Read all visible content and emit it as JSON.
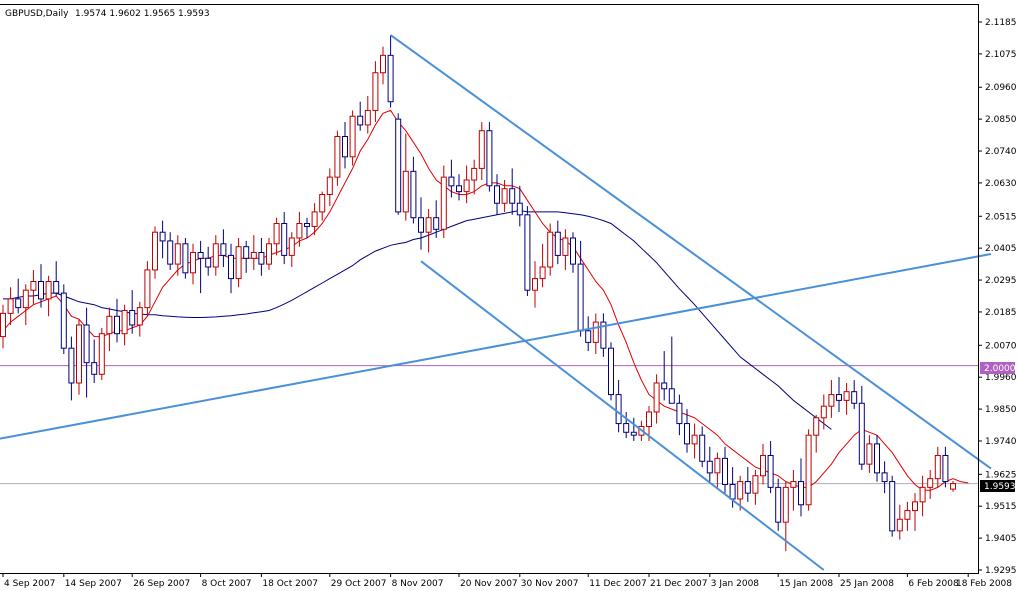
{
  "header": {
    "symbol": "GBPUSD,Daily",
    "ohlc": "1.9574 1.9602 1.9565 1.9593"
  },
  "price_axis": {
    "ticks": [
      "2.1185",
      "2.1075",
      "2.0960",
      "2.0850",
      "2.0740",
      "2.0630",
      "2.0515",
      "2.0405",
      "2.0295",
      "2.0185",
      "2.0070",
      "1.9960",
      "1.9850",
      "1.9740",
      "1.9625",
      "1.9515",
      "1.9405",
      "1.9295"
    ],
    "level_label": "2.0000",
    "current_label": "1.9593"
  },
  "time_axis": {
    "labels": [
      "4 Sep 2007",
      "14 Sep 2007",
      "26 Sep 2007",
      "8 Oct 2007",
      "18 Oct 2007",
      "29 Oct 2007",
      "8 Nov 2007",
      "20 Nov 2007",
      "30 Nov 2007",
      "11 Dec 2007",
      "21 Dec 2007",
      "3 Jan 2008",
      "15 Jan 2008",
      "25 Jan 2008",
      "6 Feb 2008",
      "18 Feb 2008"
    ]
  },
  "colors": {
    "bull": "#c00000",
    "bear": "#00007f",
    "fast_ma": "#e00000",
    "slow_ma": "#000080",
    "trendline": "#4a90d9",
    "level": "#b060c0",
    "current": "#b0b0b0",
    "axis": "#000000"
  },
  "chart_data": {
    "type": "candlestick",
    "symbol": "GBPUSD",
    "timeframe": "Daily",
    "ylim": [
      1.9295,
      2.1185
    ],
    "y_ticks": [
      2.1185,
      2.1075,
      2.096,
      2.085,
      2.074,
      2.063,
      2.0515,
      2.0405,
      2.0295,
      2.0185,
      2.007,
      1.996,
      1.985,
      1.974,
      1.9625,
      1.9515,
      1.9405,
      1.9295
    ],
    "x_labels": [
      "4 Sep 2007",
      "14 Sep 2007",
      "26 Sep 2007",
      "8 Oct 2007",
      "18 Oct 2007",
      "29 Oct 2007",
      "8 Nov 2007",
      "20 Nov 2007",
      "30 Nov 2007",
      "11 Dec 2007",
      "21 Dec 2007",
      "3 Jan 2008",
      "15 Jan 2008",
      "25 Jan 2008",
      "6 Feb 2008",
      "18 Feb 2008"
    ],
    "x_label_bar_index": [
      0,
      8,
      17,
      26,
      34,
      43,
      51,
      60,
      68,
      77,
      85,
      93,
      102,
      110,
      119,
      127
    ],
    "candles": [
      [
        2.01,
        2.021,
        2.006,
        2.018
      ],
      [
        2.018,
        2.027,
        2.014,
        2.023
      ],
      [
        2.023,
        2.03,
        2.018,
        2.02
      ],
      [
        2.02,
        2.028,
        2.014,
        2.026
      ],
      [
        2.026,
        2.033,
        2.021,
        2.029
      ],
      [
        2.029,
        2.035,
        2.02,
        2.023
      ],
      [
        2.023,
        2.031,
        2.017,
        2.029
      ],
      [
        2.029,
        2.036,
        2.024,
        2.025
      ],
      [
        2.025,
        2.028,
        2.004,
        2.006
      ],
      [
        2.006,
        2.01,
        1.988,
        1.994
      ],
      [
        1.994,
        2.016,
        1.99,
        2.014
      ],
      [
        2.014,
        2.02,
        1.989,
        2.001
      ],
      [
        2.001,
        2.009,
        1.994,
        1.997
      ],
      [
        1.997,
        2.013,
        1.995,
        2.011
      ],
      [
        2.011,
        2.02,
        2.005,
        2.017
      ],
      [
        2.017,
        2.023,
        2.008,
        2.011
      ],
      [
        2.011,
        2.021,
        2.007,
        2.019
      ],
      [
        2.019,
        2.026,
        2.011,
        2.014
      ],
      [
        2.014,
        2.022,
        2.01,
        2.02
      ],
      [
        2.02,
        2.036,
        2.017,
        2.033
      ],
      [
        2.033,
        2.048,
        2.03,
        2.046
      ],
      [
        2.046,
        2.05,
        2.037,
        2.043
      ],
      [
        2.043,
        2.046,
        2.033,
        2.035
      ],
      [
        2.035,
        2.045,
        2.031,
        2.042
      ],
      [
        2.042,
        2.044,
        2.03,
        2.032
      ],
      [
        2.032,
        2.042,
        2.028,
        2.039
      ],
      [
        2.039,
        2.043,
        2.025,
        2.037
      ],
      [
        2.037,
        2.041,
        2.031,
        2.034
      ],
      [
        2.034,
        2.045,
        2.031,
        2.042
      ],
      [
        2.042,
        2.047,
        2.034,
        2.038
      ],
      [
        2.038,
        2.042,
        2.025,
        2.03
      ],
      [
        2.03,
        2.044,
        2.027,
        2.041
      ],
      [
        2.041,
        2.043,
        2.032,
        2.037
      ],
      [
        2.037,
        2.045,
        2.033,
        2.039
      ],
      [
        2.039,
        2.044,
        2.031,
        2.035
      ],
      [
        2.035,
        2.044,
        2.033,
        2.042
      ],
      [
        2.042,
        2.051,
        2.038,
        2.049
      ],
      [
        2.049,
        2.053,
        2.035,
        2.038
      ],
      [
        2.038,
        2.046,
        2.034,
        2.044
      ],
      [
        2.044,
        2.053,
        2.041,
        2.049
      ],
      [
        2.049,
        2.051,
        2.044,
        2.048
      ],
      [
        2.048,
        2.056,
        2.045,
        2.053
      ],
      [
        2.053,
        2.06,
        2.05,
        2.059
      ],
      [
        2.059,
        2.068,
        2.055,
        2.065
      ],
      [
        2.065,
        2.081,
        2.062,
        2.079
      ],
      [
        2.079,
        2.084,
        2.068,
        2.072
      ],
      [
        2.072,
        2.088,
        2.069,
        2.086
      ],
      [
        2.086,
        2.091,
        2.081,
        2.083
      ],
      [
        2.083,
        2.093,
        2.08,
        2.088
      ],
      [
        2.088,
        2.105,
        2.084,
        2.101
      ],
      [
        2.101,
        2.11,
        2.097,
        2.107
      ],
      [
        2.107,
        2.114,
        2.089,
        2.091
      ],
      [
        2.085,
        2.087,
        2.052,
        2.053
      ],
      [
        2.053,
        2.08,
        2.05,
        2.067
      ],
      [
        2.067,
        2.072,
        2.049,
        2.051
      ],
      [
        2.051,
        2.058,
        2.04,
        2.046
      ],
      [
        2.046,
        2.054,
        2.039,
        2.051
      ],
      [
        2.051,
        2.057,
        2.044,
        2.047
      ],
      [
        2.047,
        2.069,
        2.044,
        2.065
      ],
      [
        2.065,
        2.071,
        2.058,
        2.062
      ],
      [
        2.062,
        2.066,
        2.057,
        2.06
      ],
      [
        2.06,
        2.069,
        2.056,
        2.064
      ],
      [
        2.064,
        2.071,
        2.059,
        2.068
      ],
      [
        2.068,
        2.084,
        2.064,
        2.081
      ],
      [
        2.081,
        2.084,
        2.06,
        2.062
      ],
      [
        2.062,
        2.066,
        2.052,
        2.056
      ],
      [
        2.056,
        2.064,
        2.053,
        2.061
      ],
      [
        2.061,
        2.068,
        2.052,
        2.056
      ],
      [
        2.056,
        2.062,
        2.048,
        2.052
      ],
      [
        2.052,
        2.055,
        2.024,
        2.026
      ],
      [
        2.026,
        2.036,
        2.02,
        2.03
      ],
      [
        2.03,
        2.042,
        2.027,
        2.034
      ],
      [
        2.034,
        2.049,
        2.031,
        2.046
      ],
      [
        2.046,
        2.05,
        2.035,
        2.038
      ],
      [
        2.038,
        2.047,
        2.033,
        2.044
      ],
      [
        2.044,
        2.046,
        2.032,
        2.035
      ],
      [
        2.035,
        2.043,
        2.01,
        2.012
      ],
      [
        2.012,
        2.017,
        2.005,
        2.008
      ],
      [
        2.008,
        2.018,
        2.004,
        2.015
      ],
      [
        2.015,
        2.018,
        2.003,
        2.006
      ],
      [
        2.006,
        2.008,
        1.988,
        1.99
      ],
      [
        1.99,
        1.995,
        1.977,
        1.98
      ],
      [
        1.98,
        1.984,
        1.975,
        1.977
      ],
      [
        1.977,
        1.982,
        1.974,
        1.976
      ],
      [
        1.976,
        1.981,
        1.974,
        1.979
      ],
      [
        1.979,
        1.986,
        1.974,
        1.984
      ],
      [
        1.984,
        1.997,
        1.98,
        1.994
      ],
      [
        1.994,
        2.005,
        1.988,
        1.992
      ],
      [
        1.992,
        2.01,
        1.987,
        1.987
      ],
      [
        1.987,
        1.99,
        1.976,
        1.98
      ],
      [
        1.98,
        1.985,
        1.97,
        1.973
      ],
      [
        1.973,
        1.98,
        1.968,
        1.976
      ],
      [
        1.976,
        1.979,
        1.965,
        1.967
      ],
      [
        1.967,
        1.972,
        1.96,
        1.963
      ],
      [
        1.963,
        1.97,
        1.958,
        1.968
      ],
      [
        1.968,
        1.972,
        1.956,
        1.959
      ],
      [
        1.959,
        1.965,
        1.951,
        1.954
      ],
      [
        1.954,
        1.962,
        1.95,
        1.96
      ],
      [
        1.96,
        1.965,
        1.953,
        1.956
      ],
      [
        1.956,
        1.964,
        1.952,
        1.962
      ],
      [
        1.962,
        1.973,
        1.959,
        1.969
      ],
      [
        1.969,
        1.974,
        1.956,
        1.958
      ],
      [
        1.958,
        1.961,
        1.943,
        1.946
      ],
      [
        1.946,
        1.96,
        1.936,
        1.958
      ],
      [
        1.958,
        1.964,
        1.95,
        1.96
      ],
      [
        1.96,
        1.968,
        1.948,
        1.952
      ],
      [
        1.952,
        1.978,
        1.95,
        1.976
      ],
      [
        1.976,
        1.983,
        1.97,
        1.982
      ],
      [
        1.982,
        1.99,
        1.978,
        1.986
      ],
      [
        1.986,
        1.995,
        1.982,
        1.99
      ],
      [
        1.99,
        1.996,
        1.984,
        1.988
      ],
      [
        1.988,
        1.994,
        1.983,
        1.991
      ],
      [
        1.991,
        1.995,
        1.985,
        1.987
      ],
      [
        1.987,
        1.993,
        1.964,
        1.966
      ],
      [
        1.966,
        1.976,
        1.963,
        1.973
      ],
      [
        1.973,
        1.976,
        1.96,
        1.963
      ],
      [
        1.963,
        1.967,
        1.956,
        1.96
      ],
      [
        1.96,
        1.962,
        1.941,
        1.943
      ],
      [
        1.943,
        1.952,
        1.94,
        1.947
      ],
      [
        1.947,
        1.953,
        1.943,
        1.95
      ],
      [
        1.95,
        1.956,
        1.943,
        1.953
      ],
      [
        1.953,
        1.962,
        1.948,
        1.958
      ],
      [
        1.958,
        1.964,
        1.954,
        1.961
      ],
      [
        1.961,
        1.972,
        1.958,
        1.969
      ],
      [
        1.969,
        1.972,
        1.958,
        1.96
      ],
      [
        1.9574,
        1.9602,
        1.9565,
        1.9593
      ]
    ],
    "fast_ma": [
      2.012,
      2.015,
      2.017,
      2.019,
      2.021,
      2.022,
      2.023,
      2.024,
      2.021,
      2.017,
      2.016,
      2.013,
      2.01,
      2.01,
      2.011,
      2.012,
      2.012,
      2.013,
      2.014,
      2.017,
      2.022,
      2.027,
      2.03,
      2.033,
      2.035,
      2.036,
      2.037,
      2.037,
      2.038,
      2.038,
      2.037,
      2.037,
      2.037,
      2.037,
      2.037,
      2.038,
      2.039,
      2.04,
      2.041,
      2.043,
      2.044,
      2.046,
      2.049,
      2.053,
      2.058,
      2.063,
      2.068,
      2.074,
      2.078,
      2.083,
      2.087,
      2.088,
      2.084,
      2.081,
      2.077,
      2.073,
      2.068,
      2.064,
      2.062,
      2.06,
      2.059,
      2.059,
      2.06,
      2.062,
      2.063,
      2.063,
      2.062,
      2.062,
      2.061,
      2.057,
      2.053,
      2.049,
      2.046,
      2.044,
      2.043,
      2.041,
      2.037,
      2.033,
      2.029,
      2.026,
      2.021,
      2.014,
      2.008,
      2.001,
      1.995,
      1.99,
      1.988,
      1.986,
      1.985,
      1.984,
      1.983,
      1.982,
      1.98,
      1.978,
      1.976,
      1.973,
      1.971,
      1.969,
      1.967,
      1.965,
      1.964,
      1.963,
      1.962,
      1.96,
      1.959,
      1.958,
      1.958,
      1.96,
      1.963,
      1.966,
      1.97,
      1.973,
      1.976,
      1.978,
      1.977,
      1.976,
      1.973,
      1.97,
      1.966,
      1.962,
      1.959,
      1.957,
      1.957,
      1.958,
      1.96,
      1.961,
      1.96,
      1.9595
    ],
    "slow_ma": [
      2.023,
      2.023,
      2.0235,
      2.024,
      2.024,
      2.0245,
      2.025,
      2.025,
      2.024,
      2.023,
      2.022,
      2.0215,
      2.021,
      2.02,
      2.0195,
      2.019,
      2.0185,
      2.018,
      2.0178,
      2.0176,
      2.0175,
      2.0172,
      2.017,
      2.0168,
      2.0167,
      2.0166,
      2.0166,
      2.0167,
      2.0168,
      2.017,
      2.0172,
      2.0175,
      2.0178,
      2.0182,
      2.0186,
      2.019,
      2.02,
      2.0212,
      2.0225,
      2.024,
      2.0255,
      2.027,
      2.0285,
      2.03,
      2.0315,
      2.033,
      2.0345,
      2.0365,
      2.038,
      2.0395,
      2.0405,
      2.0415,
      2.042,
      2.0425,
      2.0435,
      2.044,
      2.045,
      2.046,
      2.047,
      2.048,
      2.049,
      2.05,
      2.0505,
      2.051,
      2.0515,
      2.052,
      2.0525,
      2.053,
      2.0535,
      2.053,
      2.053,
      2.053,
      2.053,
      2.053,
      2.0527,
      2.0524,
      2.052,
      2.0515,
      2.0508,
      2.05,
      2.049,
      2.047,
      2.045,
      2.043,
      2.0405,
      2.038,
      2.0355,
      2.0325,
      2.0295,
      2.0265,
      2.0238,
      2.021,
      2.018,
      2.015,
      2.012,
      2.009,
      2.006,
      2.003,
      2.001,
      1.999,
      1.997,
      1.995,
      1.993,
      1.9905,
      1.988,
      1.986,
      1.984,
      1.982,
      1.98,
      1.978
    ],
    "trendlines": [
      {
        "from": [
          -1,
          1.9745
        ],
        "to": [
          130,
          2.0385
        ]
      },
      {
        "from": [
          51,
          2.114
        ],
        "to": [
          130,
          1.9645
        ]
      },
      {
        "from": [
          55,
          2.036
        ],
        "to": [
          108,
          1.9295
        ]
      }
    ],
    "horizontal_levels": [
      2.0
    ],
    "current_price": 1.9593,
    "grid": false
  }
}
